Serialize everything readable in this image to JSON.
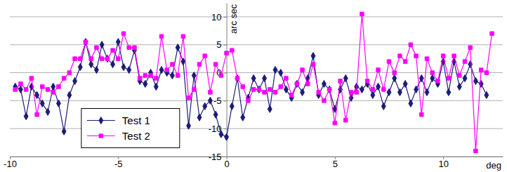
{
  "chart_data": {
    "type": "line",
    "x_label": "deg",
    "y_label": "arc sec",
    "x": [
      -9.75,
      -9.5,
      -9.25,
      -9.0,
      -8.75,
      -8.5,
      -8.25,
      -8.0,
      -7.75,
      -7.5,
      -7.25,
      -7.0,
      -6.75,
      -6.5,
      -6.25,
      -6.0,
      -5.75,
      -5.5,
      -5.25,
      -5.0,
      -4.75,
      -4.5,
      -4.25,
      -4.0,
      -3.75,
      -3.5,
      -3.25,
      -3.0,
      -2.75,
      -2.5,
      -2.25,
      -2.0,
      -1.75,
      -1.5,
      -1.25,
      -1.0,
      -0.75,
      -0.5,
      -0.25,
      0.0,
      0.25,
      0.5,
      0.75,
      1.0,
      1.25,
      1.5,
      1.75,
      2.0,
      2.25,
      2.5,
      2.75,
      3.0,
      3.25,
      3.5,
      3.75,
      4.0,
      4.25,
      4.5,
      4.75,
      5.0,
      5.25,
      5.5,
      5.75,
      6.0,
      6.25,
      6.5,
      6.75,
      7.0,
      7.25,
      7.5,
      7.75,
      8.0,
      8.25,
      8.5,
      8.75,
      9.0,
      9.25,
      9.5,
      9.75,
      10.0,
      10.25,
      10.5,
      10.75,
      11.0,
      11.25,
      11.5,
      11.75,
      12.0,
      12.25
    ],
    "series": [
      {
        "name": "Test 1",
        "color": "#1c1c78",
        "marker": "diamond",
        "line_style": "solid",
        "values": [
          -2.5,
          -3,
          -7.8,
          -2.5,
          -4,
          -5.5,
          -7,
          -2.5,
          -5.5,
          -10.5,
          -4,
          -1.5,
          1,
          5.5,
          1.5,
          0.5,
          5,
          2.5,
          1.5,
          5.5,
          1,
          0.5,
          4,
          -1.5,
          -2,
          0,
          -2.5,
          0.5,
          0,
          -0.5,
          4.5,
          2,
          -9.5,
          -0.5,
          -8,
          -6,
          -5,
          -7.5,
          -11,
          -11.5,
          -6,
          -1,
          -8,
          -4.5,
          -1,
          -3,
          -1,
          -6.5,
          0.5,
          0,
          -3,
          -4.5,
          -2,
          -3.5,
          -1,
          3,
          -4,
          -2,
          -3,
          -6.5,
          -3,
          -1,
          -4.5,
          -2.5,
          -3,
          -2,
          -4,
          -2.5,
          -6,
          -3.5,
          -1,
          -3.5,
          -2,
          -5.5,
          -3,
          -1,
          -3.5,
          -1,
          -2,
          2,
          -3.5,
          2,
          -2.5,
          -1,
          1.5,
          -1.5,
          -2,
          -4,
          null
        ]
      },
      {
        "name": "Test 2",
        "color": "#ff00ff",
        "marker": "square",
        "line_style": "solid",
        "values": [
          -3,
          -2,
          -3,
          -1,
          -7.5,
          -2.5,
          -3,
          -3.5,
          -2.5,
          -1,
          0,
          2.5,
          2.5,
          5.5,
          2.5,
          4.5,
          2.5,
          2.5,
          4,
          2.5,
          7,
          4.5,
          4.5,
          -1,
          -0.5,
          -0.5,
          -1,
          6.5,
          0.5,
          1.5,
          -0.5,
          6.5,
          -4.5,
          -3,
          1.5,
          3,
          -3.5,
          1.5,
          -0.5,
          3.5,
          4,
          -1,
          -2.5,
          -5,
          -3,
          -3,
          -3.5,
          -3,
          -3.5,
          -2.5,
          -1,
          -4,
          -2,
          0.5,
          -2,
          1.5,
          -3.5,
          -5,
          -3,
          -9,
          -1.5,
          -8.5,
          -3.5,
          -3.5,
          10.5,
          -1.5,
          -3,
          0.5,
          -3,
          2,
          0,
          3,
          2,
          5,
          3,
          -7.5,
          2.5,
          0,
          -1.5,
          3,
          -1,
          3,
          -0.5,
          2,
          4.5,
          -14,
          0.5,
          0,
          7
        ]
      }
    ],
    "xlim": [
      -10,
      12.75
    ],
    "xticks": [
      -10,
      -5,
      0,
      5,
      10
    ],
    "ylim": [
      -15,
      12.5
    ],
    "yticks": [
      -15,
      -10,
      -5,
      0,
      5,
      10
    ],
    "grid": true,
    "legend": "bottom-left"
  }
}
